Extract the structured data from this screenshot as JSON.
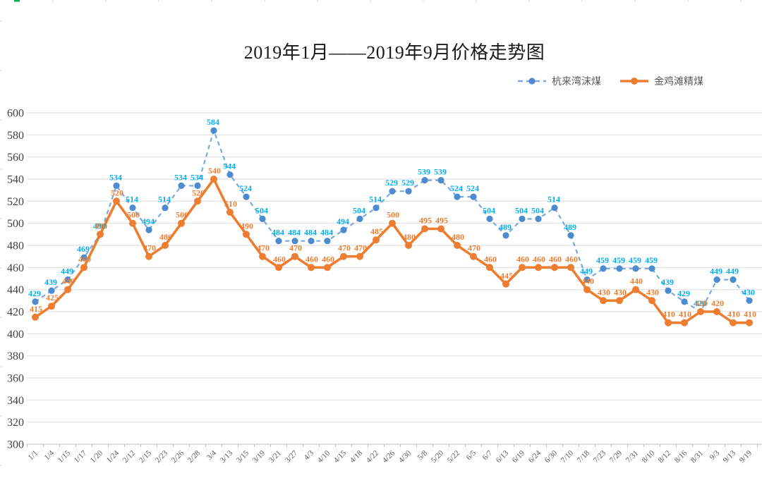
{
  "title": "2019年1月——2019年9月价格走势图",
  "legend": {
    "position": "top-right",
    "items": [
      {
        "label": "杭来湾沫煤"
      },
      {
        "label": "金鸡滩精煤"
      }
    ]
  },
  "colors": {
    "grid": "#DADADA",
    "axis": "#BFBFBF",
    "y_axis_text": "#404040",
    "x_axis_text": "#595959",
    "title_text": "#1a1a1a",
    "edge_artifact": "#d9d9d9",
    "edge_artifact_green": "#00B050"
  },
  "chart_data": {
    "type": "line",
    "title": "2019年1月——2019年9月价格走势图",
    "xlabel": "",
    "ylabel": "",
    "ylim": [
      300,
      600
    ],
    "ytick_step": 20,
    "grid": true,
    "legend_position": "top-right",
    "categories": [
      "1/1",
      "1/4",
      "1/15",
      "1/17",
      "1/20",
      "1/24",
      "2/12",
      "2/15",
      "2/23",
      "2/26",
      "2/28",
      "3/4",
      "3/13",
      "3/15",
      "3/19",
      "3/21",
      "3/27",
      "4/3",
      "4/10",
      "4/15",
      "4/18",
      "4/22",
      "4/26",
      "4/30",
      "5/8",
      "5/20",
      "5/22",
      "6/5",
      "6/7",
      "6/13",
      "6/19",
      "6/24",
      "6/30",
      "7/10",
      "7/18",
      "7/23",
      "7/29",
      "7/31",
      "8/10",
      "8/12",
      "8/16",
      "8/31",
      "9/3",
      "9/13",
      "9/19"
    ],
    "series": [
      {
        "name": "杭来湾沫煤",
        "style": "dashed",
        "line_color": "#7CA9DD",
        "marker_color": "#4D8BCE",
        "label_color": "#00B0F0",
        "values": [
          429,
          439,
          449,
          469,
          490,
          534,
          514,
          494,
          514,
          534,
          534,
          584,
          544,
          524,
          504,
          484,
          484,
          484,
          484,
          494,
          504,
          514,
          529,
          529,
          539,
          539,
          524,
          524,
          504,
          489,
          504,
          504,
          514,
          489,
          449,
          459,
          459,
          459,
          459,
          439,
          429,
          420,
          449,
          449,
          430
        ]
      },
      {
        "name": "金鸡滩精煤",
        "style": "solid",
        "line_color": "#ED7D31",
        "marker_color": "#ED7D31",
        "label_color": "#ED7D31",
        "values": [
          415,
          425,
          440,
          460,
          490,
          520,
          500,
          470,
          480,
          500,
          520,
          540,
          510,
          490,
          470,
          460,
          470,
          460,
          460,
          470,
          470,
          485,
          500,
          480,
          495,
          495,
          480,
          470,
          460,
          445,
          460,
          460,
          460,
          460,
          440,
          430,
          430,
          440,
          430,
          410,
          410,
          420,
          420,
          410,
          410
        ]
      }
    ]
  }
}
